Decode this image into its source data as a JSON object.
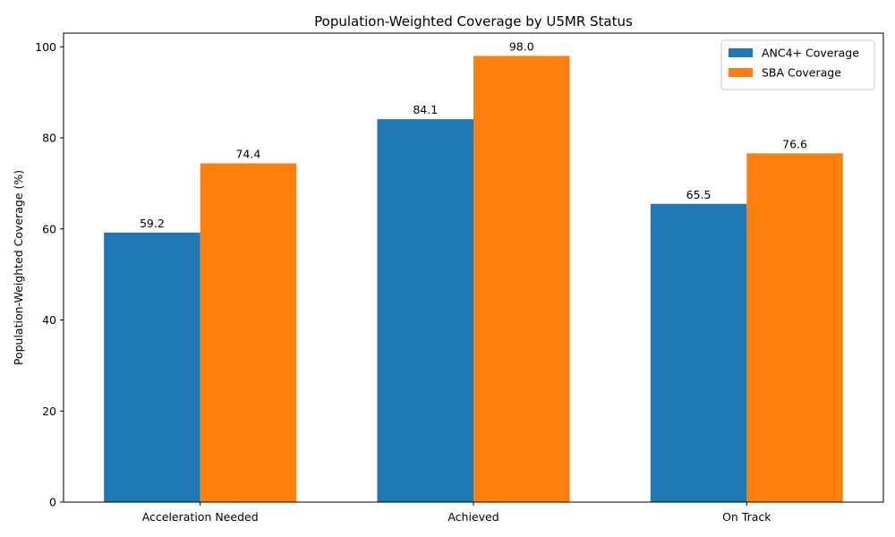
{
  "chart_data": {
    "type": "bar",
    "title": "Population-Weighted Coverage by U5MR Status",
    "xlabel": "",
    "ylabel": "Population-Weighted Coverage (%)",
    "categories": [
      "Acceleration Needed",
      "Achieved",
      "On Track"
    ],
    "series": [
      {
        "name": "ANC4+ Coverage",
        "values": [
          59.2,
          84.1,
          65.5
        ],
        "color": "#1f77b4"
      },
      {
        "name": "SBA Coverage",
        "values": [
          74.4,
          98.0,
          76.6
        ],
        "color": "#ff7f0e"
      }
    ],
    "ylim": [
      0,
      103
    ],
    "yticks": [
      0,
      20,
      40,
      60,
      80,
      100
    ],
    "grid": false,
    "legend_position": "top-right"
  }
}
